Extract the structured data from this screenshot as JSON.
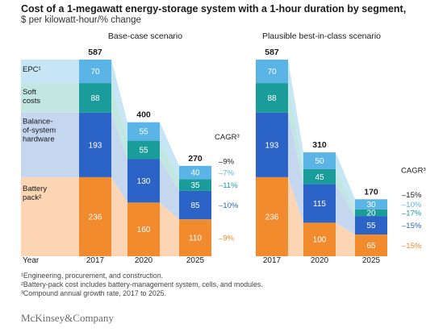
{
  "title": "Cost of a 1-megawatt energy-storage system with a 1-hour duration by segment,",
  "subtitle": "$ per kilowatt-hour/% change",
  "year_label": "Year",
  "cagr_label": "CAGR³",
  "row_labels": {
    "epc": [
      "EPC¹"
    ],
    "soft": [
      "Soft",
      "costs"
    ],
    "bos": [
      "Balance-",
      "of-system",
      "hardware"
    ],
    "battery": [
      "Battery",
      "pack²"
    ]
  },
  "colors": {
    "epc": "#5ab4e5",
    "soft": "#1a9c9a",
    "bos": "#2b63c6",
    "battery": "#f28a2e",
    "epc_band": "#c6e6f5",
    "soft_band": "#c2e6e2",
    "bos_band": "#c5d6ef",
    "battery_band": "#fbd5b4"
  },
  "chart_data": [
    {
      "type": "bar",
      "title": "Base-case scenario",
      "categories": [
        "2017",
        "2020",
        "2025"
      ],
      "totals": [
        587,
        400,
        270
      ],
      "series": [
        {
          "name": "Battery pack",
          "values": [
            236,
            160,
            110
          ]
        },
        {
          "name": "Balance-of-system hardware",
          "values": [
            193,
            130,
            85
          ]
        },
        {
          "name": "Soft costs",
          "values": [
            88,
            55,
            35
          ]
        },
        {
          "name": "EPC",
          "values": [
            70,
            55,
            40
          ]
        }
      ],
      "cagr": {
        "total": "–9%",
        "epc": "–7%",
        "soft": "–11%",
        "bos": "–10%",
        "battery": "–9%"
      }
    },
    {
      "type": "bar",
      "title": "Plausible best-in-class scenario",
      "categories": [
        "2017",
        "2020",
        "2025"
      ],
      "totals": [
        587,
        310,
        170
      ],
      "series": [
        {
          "name": "Battery pack",
          "values": [
            236,
            100,
            65
          ]
        },
        {
          "name": "Balance-of-system hardware",
          "values": [
            193,
            115,
            55
          ]
        },
        {
          "name": "Soft costs",
          "values": [
            88,
            45,
            20
          ]
        },
        {
          "name": "EPC",
          "values": [
            70,
            50,
            30
          ]
        }
      ],
      "cagr": {
        "total": "–15%",
        "epc": "–10%",
        "soft": "–17%",
        "bos": "–15%",
        "battery": "–15%"
      }
    }
  ],
  "footnotes": [
    "¹Engineering, procurement, and construction.",
    "²Battery-pack cost includes battery-management system, cells, and modules.",
    "³Compound annual growth rate, 2017 to 2025."
  ],
  "logo": "McKinsey&Company"
}
